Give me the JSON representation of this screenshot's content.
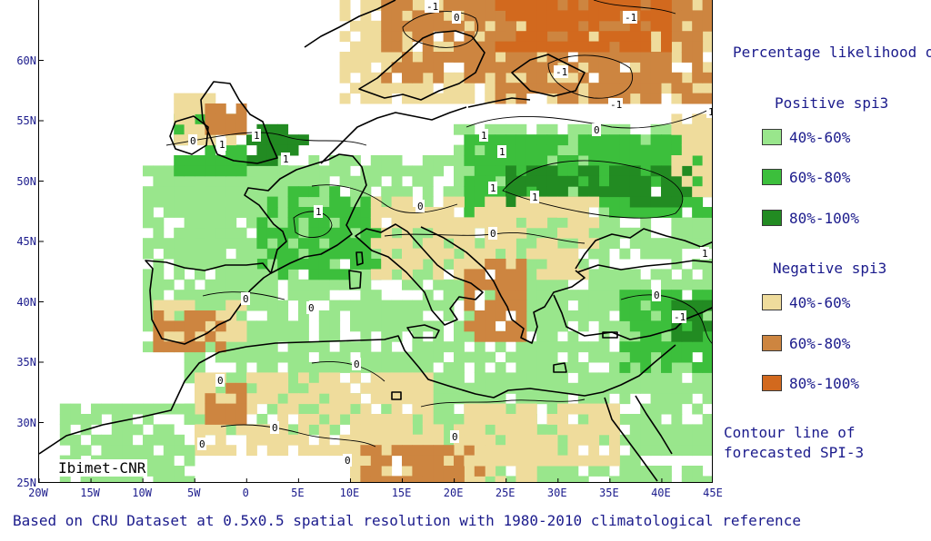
{
  "map": {
    "bounds": {
      "lon_min": -20,
      "lon_max": 45,
      "lat_min": 25,
      "lat_max": 65
    },
    "lat_ticks": [
      25,
      30,
      35,
      40,
      45,
      50,
      55,
      60
    ],
    "lat_labels": [
      "25N",
      "30N",
      "35N",
      "40N",
      "45N",
      "50N",
      "55N",
      "60N"
    ],
    "lon_ticks": [
      -20,
      -15,
      -10,
      -5,
      0,
      5,
      10,
      15,
      20,
      25,
      30,
      35,
      40,
      45
    ],
    "lon_labels": [
      "20W",
      "15W",
      "10W",
      "5W",
      "0",
      "5E",
      "10E",
      "15E",
      "20E",
      "25E",
      "30E",
      "35E",
      "40E",
      "45E"
    ],
    "watermark": "Ibimet-CNR",
    "source_note": "Based on CRU Dataset at 0.5x0.5 spatial resolution with 1980-2010 climatological reference",
    "contour_labels": [
      "-1",
      "-1",
      "-1",
      "-1",
      "-1",
      "1",
      "1",
      "1",
      "1",
      "1",
      "1",
      "1",
      "1",
      "1",
      "1",
      "0",
      "0",
      "0",
      "0",
      "0",
      "0",
      "0",
      "0",
      "0",
      "0",
      "0",
      "0",
      "0",
      "0",
      "-1"
    ]
  },
  "legend": {
    "title": "Percentage likelihood of:",
    "positive_header": "Positive spi3",
    "negative_header": "Negative spi3",
    "positive": [
      {
        "label": "40%-60%",
        "color": "#99e68c"
      },
      {
        "label": "60%-80%",
        "color": "#3cbf3c"
      },
      {
        "label": "80%-100%",
        "color": "#228b22"
      }
    ],
    "negative": [
      {
        "label": "40%-60%",
        "color": "#efdc9c"
      },
      {
        "label": "60%-80%",
        "color": "#cd8540"
      },
      {
        "label": "80%-100%",
        "color": "#d2691e"
      }
    ],
    "contour_label": "Contour line of forecasted SPI-3"
  }
}
